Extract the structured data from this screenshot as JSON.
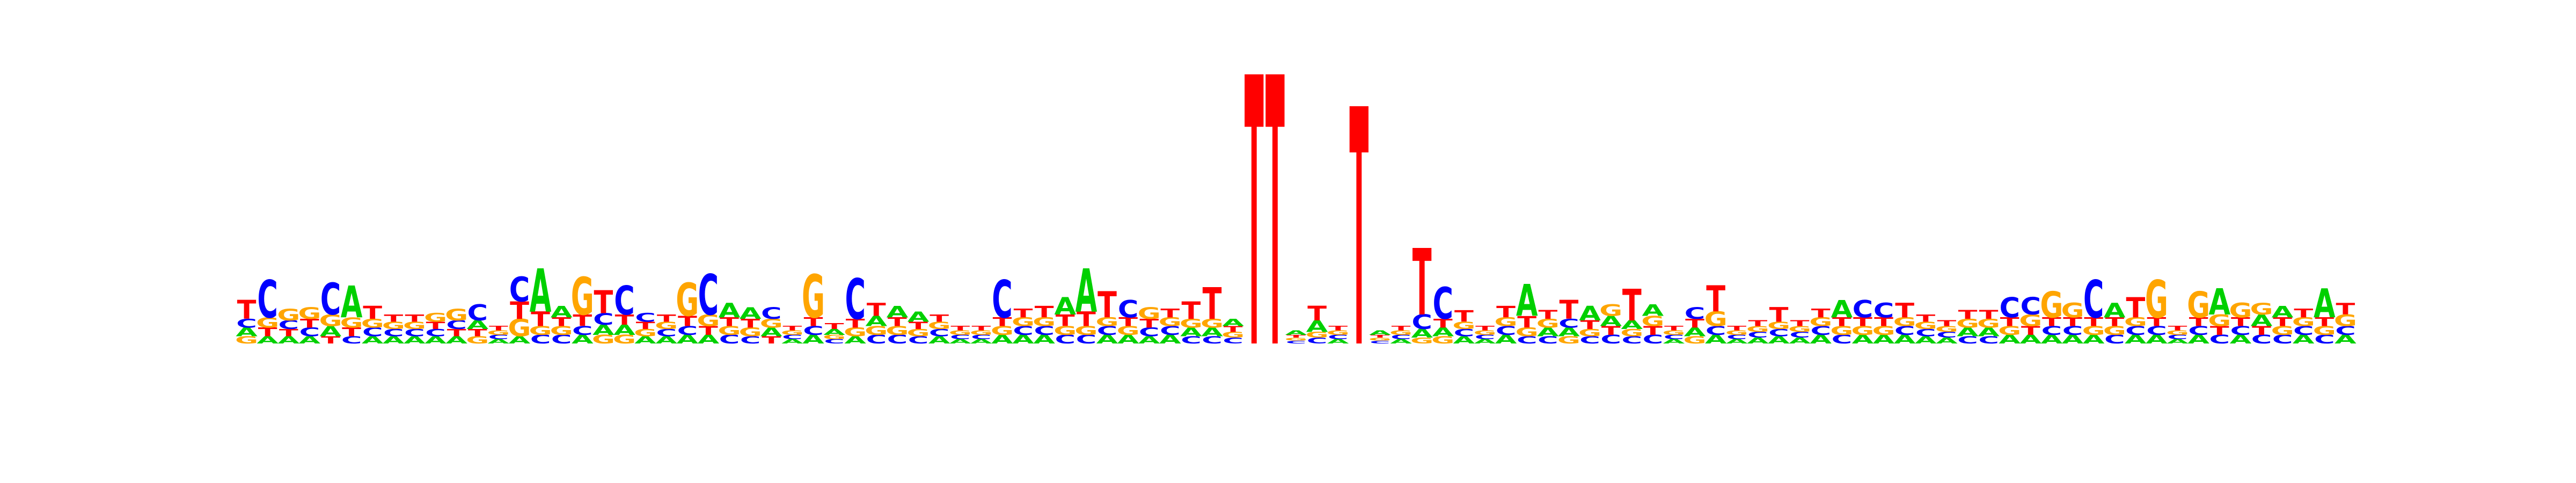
{
  "chart_data": {
    "type": "sequence-logo",
    "alphabet": [
      "A",
      "C",
      "G",
      "T"
    ],
    "colors": {
      "A": "#00d000",
      "C": "#0000ff",
      "G": "#ffa500",
      "T": "#ff0000"
    },
    "ylim": [
      0,
      2
    ],
    "positions": [
      {
        "A": 0.06,
        "C": 0.06,
        "G": 0.05,
        "T": 0.13
      },
      {
        "A": 0.05,
        "C": 0.26,
        "G": 0.07,
        "T": 0.06
      },
      {
        "A": 0.05,
        "C": 0.06,
        "G": 0.08,
        "T": 0.05
      },
      {
        "A": 0.05,
        "C": 0.06,
        "G": 0.08,
        "T": 0.06
      },
      {
        "A": 0.07,
        "C": 0.22,
        "G": 0.08,
        "T": 0.05
      },
      {
        "A": 0.22,
        "C": 0.05,
        "G": 0.07,
        "T": 0.06
      },
      {
        "A": 0.05,
        "C": 0.06,
        "G": 0.06,
        "T": 0.09
      },
      {
        "A": 0.05,
        "C": 0.05,
        "G": 0.05,
        "T": 0.05
      },
      {
        "A": 0.05,
        "C": 0.05,
        "G": 0.05,
        "T": 0.05
      },
      {
        "A": 0.05,
        "C": 0.05,
        "G": 0.06,
        "T": 0.05
      },
      {
        "A": 0.05,
        "C": 0.06,
        "G": 0.08,
        "T": 0.05
      },
      {
        "A": 0.06,
        "C": 0.11,
        "G": 0.05,
        "T": 0.05
      },
      {
        "A": 0.03,
        "C": 0.03,
        "G": 0.03,
        "T": 0.03
      },
      {
        "A": 0.05,
        "C": 0.17,
        "G": 0.12,
        "T": 0.12
      },
      {
        "A": 0.3,
        "C": 0.06,
        "G": 0.06,
        "T": 0.1
      },
      {
        "A": 0.08,
        "C": 0.06,
        "G": 0.06,
        "T": 0.06
      },
      {
        "A": 0.06,
        "C": 0.06,
        "G": 0.26,
        "T": 0.08
      },
      {
        "A": 0.07,
        "C": 0.08,
        "G": 0.06,
        "T": 0.16
      },
      {
        "A": 0.07,
        "C": 0.2,
        "G": 0.06,
        "T": 0.07
      },
      {
        "A": 0.05,
        "C": 0.06,
        "G": 0.05,
        "T": 0.05
      },
      {
        "A": 0.05,
        "C": 0.05,
        "G": 0.05,
        "T": 0.05
      },
      {
        "A": 0.06,
        "C": 0.06,
        "G": 0.23,
        "T": 0.07
      },
      {
        "A": 0.06,
        "C": 0.28,
        "G": 0.08,
        "T": 0.06
      },
      {
        "A": 0.1,
        "C": 0.06,
        "G": 0.06,
        "T": 0.06
      },
      {
        "A": 0.08,
        "C": 0.05,
        "G": 0.06,
        "T": 0.06
      },
      {
        "A": 0.06,
        "C": 0.08,
        "G": 0.06,
        "T": 0.05
      },
      {
        "A": 0.03,
        "C": 0.03,
        "G": 0.03,
        "T": 0.03
      },
      {
        "A": 0.06,
        "C": 0.06,
        "G": 0.3,
        "T": 0.06
      },
      {
        "A": 0.04,
        "C": 0.03,
        "G": 0.03,
        "T": 0.04
      },
      {
        "A": 0.05,
        "C": 0.28,
        "G": 0.06,
        "T": 0.06
      },
      {
        "A": 0.07,
        "C": 0.06,
        "G": 0.06,
        "T": 0.09
      },
      {
        "A": 0.08,
        "C": 0.06,
        "G": 0.06,
        "T": 0.06
      },
      {
        "A": 0.07,
        "C": 0.05,
        "G": 0.05,
        "T": 0.05
      },
      {
        "A": 0.05,
        "C": 0.05,
        "G": 0.05,
        "T": 0.05
      },
      {
        "A": 0.03,
        "C": 0.03,
        "G": 0.03,
        "T": 0.03
      },
      {
        "A": 0.03,
        "C": 0.03,
        "G": 0.03,
        "T": 0.03
      },
      {
        "A": 0.06,
        "C": 0.26,
        "G": 0.06,
        "T": 0.06
      },
      {
        "A": 0.06,
        "C": 0.06,
        "G": 0.06,
        "T": 0.06
      },
      {
        "A": 0.06,
        "C": 0.06,
        "G": 0.06,
        "T": 0.08
      },
      {
        "A": 0.12,
        "C": 0.06,
        "G": 0.06,
        "T": 0.08
      },
      {
        "A": 0.3,
        "C": 0.06,
        "G": 0.06,
        "T": 0.1
      },
      {
        "A": 0.06,
        "C": 0.06,
        "G": 0.06,
        "T": 0.18
      },
      {
        "A": 0.06,
        "C": 0.12,
        "G": 0.06,
        "T": 0.06
      },
      {
        "A": 0.05,
        "C": 0.06,
        "G": 0.08,
        "T": 0.06
      },
      {
        "A": 0.06,
        "C": 0.06,
        "G": 0.06,
        "T": 0.06
      },
      {
        "A": 0.06,
        "C": 0.05,
        "G": 0.06,
        "T": 0.12
      },
      {
        "A": 0.06,
        "C": 0.05,
        "G": 0.06,
        "T": 0.22
      },
      {
        "A": 0.05,
        "C": 0.04,
        "G": 0.04,
        "T": 0.04
      },
      {
        "A": 0.0,
        "C": 0.0,
        "G": 0.0,
        "T": 1.86
      },
      {
        "A": 0.0,
        "C": 0.0,
        "G": 0.0,
        "T": 1.86
      },
      {
        "A": 0.03,
        "C": 0.02,
        "G": 0.02,
        "T": 0.02
      },
      {
        "A": 0.08,
        "C": 0.04,
        "G": 0.04,
        "T": 0.1
      },
      {
        "A": 0.03,
        "C": 0.03,
        "G": 0.03,
        "T": 0.03
      },
      {
        "A": 0.0,
        "C": 0.0,
        "G": 0.0,
        "T": 1.64
      },
      {
        "A": 0.03,
        "C": 0.02,
        "G": 0.02,
        "T": 0.02
      },
      {
        "A": 0.03,
        "C": 0.03,
        "G": 0.03,
        "T": 0.03
      },
      {
        "A": 0.06,
        "C": 0.1,
        "G": 0.04,
        "T": 0.46
      },
      {
        "A": 0.06,
        "C": 0.22,
        "G": 0.05,
        "T": 0.06
      },
      {
        "A": 0.05,
        "C": 0.05,
        "G": 0.05,
        "T": 0.08
      },
      {
        "A": 0.03,
        "C": 0.03,
        "G": 0.03,
        "T": 0.03
      },
      {
        "A": 0.06,
        "C": 0.06,
        "G": 0.06,
        "T": 0.08
      },
      {
        "A": 0.22,
        "C": 0.05,
        "G": 0.06,
        "T": 0.08
      },
      {
        "A": 0.06,
        "C": 0.05,
        "G": 0.06,
        "T": 0.06
      },
      {
        "A": 0.06,
        "C": 0.06,
        "G": 0.05,
        "T": 0.13
      },
      {
        "A": 0.1,
        "C": 0.05,
        "G": 0.05,
        "T": 0.06
      },
      {
        "A": 0.07,
        "C": 0.06,
        "G": 0.08,
        "T": 0.06
      },
      {
        "A": 0.06,
        "C": 0.05,
        "G": 0.05,
        "T": 0.22
      },
      {
        "A": 0.08,
        "C": 0.06,
        "G": 0.07,
        "T": 0.06
      },
      {
        "A": 0.03,
        "C": 0.03,
        "G": 0.03,
        "T": 0.03
      },
      {
        "A": 0.06,
        "C": 0.08,
        "G": 0.05,
        "T": 0.06
      },
      {
        "A": 0.06,
        "C": 0.06,
        "G": 0.1,
        "T": 0.18
      },
      {
        "A": 0.03,
        "C": 0.03,
        "G": 0.03,
        "T": 0.03
      },
      {
        "A": 0.04,
        "C": 0.04,
        "G": 0.04,
        "T": 0.04
      },
      {
        "A": 0.05,
        "C": 0.05,
        "G": 0.05,
        "T": 0.1
      },
      {
        "A": 0.04,
        "C": 0.04,
        "G": 0.04,
        "T": 0.04
      },
      {
        "A": 0.06,
        "C": 0.06,
        "G": 0.06,
        "T": 0.06
      },
      {
        "A": 0.12,
        "C": 0.06,
        "G": 0.06,
        "T": 0.06
      },
      {
        "A": 0.06,
        "C": 0.12,
        "G": 0.06,
        "T": 0.06
      },
      {
        "A": 0.06,
        "C": 0.1,
        "G": 0.06,
        "T": 0.06
      },
      {
        "A": 0.06,
        "C": 0.06,
        "G": 0.06,
        "T": 0.1
      },
      {
        "A": 0.05,
        "C": 0.05,
        "G": 0.05,
        "T": 0.05
      },
      {
        "A": 0.04,
        "C": 0.04,
        "G": 0.04,
        "T": 0.04
      },
      {
        "A": 0.06,
        "C": 0.05,
        "G": 0.06,
        "T": 0.06
      },
      {
        "A": 0.06,
        "C": 0.05,
        "G": 0.06,
        "T": 0.06
      },
      {
        "A": 0.06,
        "C": 0.14,
        "G": 0.06,
        "T": 0.06
      },
      {
        "A": 0.06,
        "C": 0.12,
        "G": 0.08,
        "T": 0.06
      },
      {
        "A": 0.06,
        "C": 0.06,
        "G": 0.18,
        "T": 0.06
      },
      {
        "A": 0.06,
        "C": 0.06,
        "G": 0.1,
        "T": 0.06
      },
      {
        "A": 0.06,
        "C": 0.26,
        "G": 0.06,
        "T": 0.06
      },
      {
        "A": 0.1,
        "C": 0.06,
        "G": 0.06,
        "T": 0.06
      },
      {
        "A": 0.06,
        "C": 0.06,
        "G": 0.06,
        "T": 0.14
      },
      {
        "A": 0.06,
        "C": 0.06,
        "G": 0.26,
        "T": 0.06
      },
      {
        "A": 0.03,
        "C": 0.03,
        "G": 0.03,
        "T": 0.03
      },
      {
        "A": 0.06,
        "C": 0.06,
        "G": 0.18,
        "T": 0.06
      },
      {
        "A": 0.18,
        "C": 0.06,
        "G": 0.08,
        "T": 0.06
      },
      {
        "A": 0.06,
        "C": 0.06,
        "G": 0.1,
        "T": 0.06
      },
      {
        "A": 0.08,
        "C": 0.06,
        "G": 0.08,
        "T": 0.06
      },
      {
        "A": 0.08,
        "C": 0.06,
        "G": 0.06,
        "T": 0.06
      },
      {
        "A": 0.06,
        "C": 0.06,
        "G": 0.06,
        "T": 0.06
      },
      {
        "A": 0.2,
        "C": 0.06,
        "G": 0.06,
        "T": 0.06
      },
      {
        "A": 0.06,
        "C": 0.06,
        "G": 0.08,
        "T": 0.08
      }
    ]
  }
}
